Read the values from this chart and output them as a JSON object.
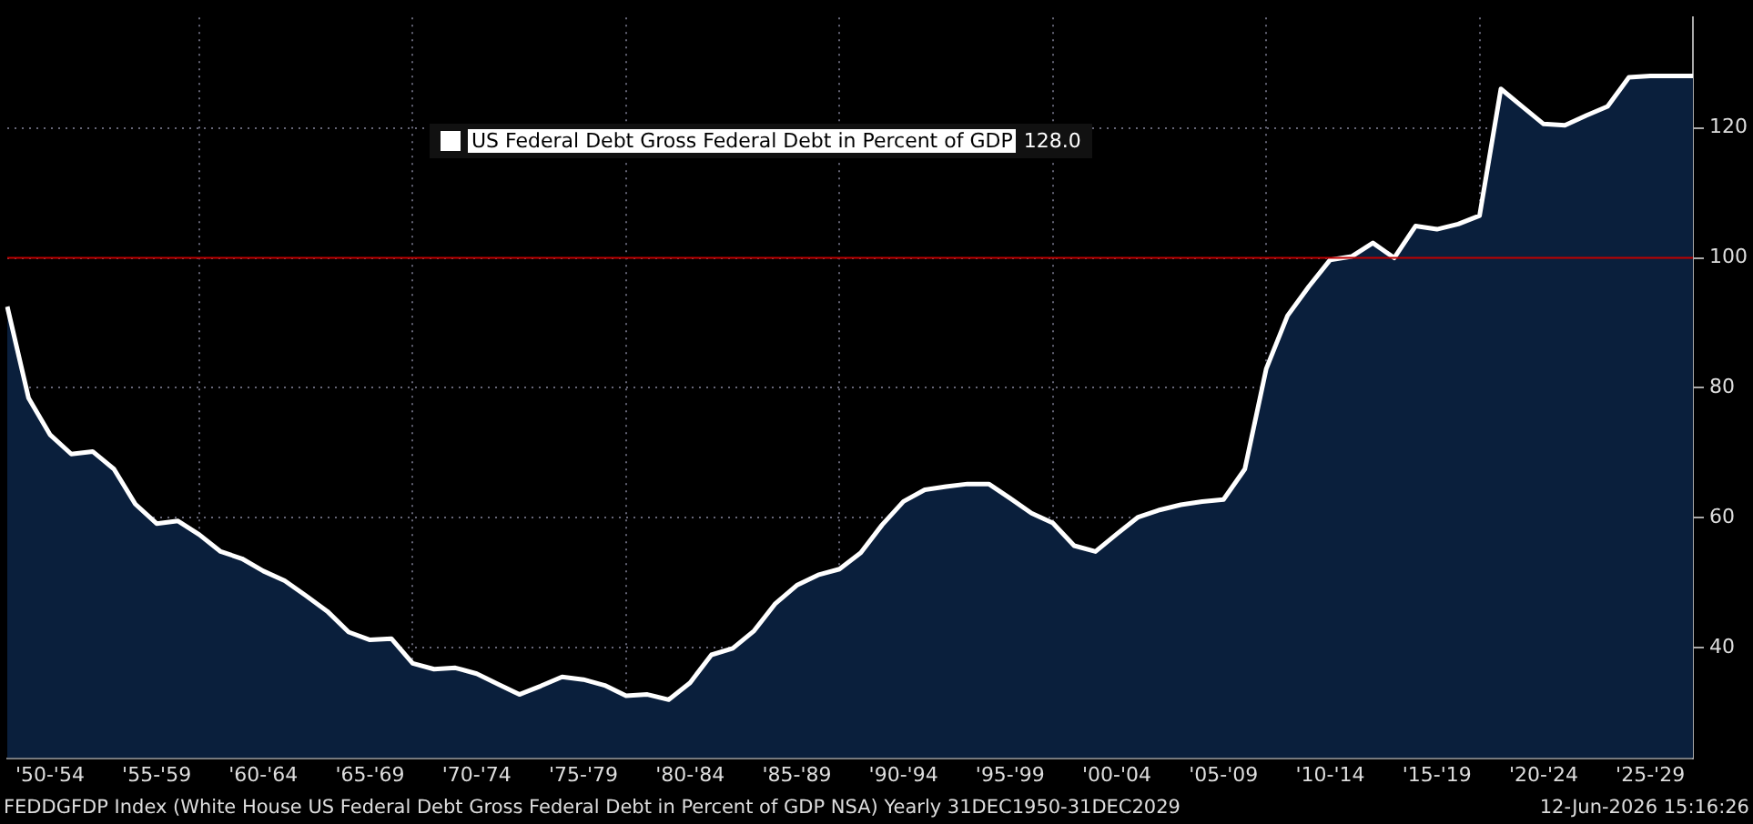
{
  "chart_data": {
    "type": "area",
    "categories": [
      null,
      null,
      "'50-'54",
      null,
      null,
      null,
      null,
      "'55-'59",
      null,
      null,
      null,
      null,
      "'60-'64",
      null,
      null,
      null,
      null,
      "'65-'69",
      null,
      null,
      null,
      null,
      "'70-'74",
      null,
      null,
      null,
      null,
      "'75-'79",
      null,
      null,
      null,
      null,
      "'80-'84",
      null,
      null,
      null,
      null,
      "'85-'89",
      null,
      null,
      null,
      null,
      "'90-'94",
      null,
      null,
      null,
      null,
      "'95-'99",
      null,
      null,
      null,
      null,
      "'00-'04",
      null,
      null,
      null,
      null,
      "'05-'09",
      null,
      null,
      null,
      null,
      "'10-'14",
      null,
      null,
      null,
      null,
      "'15-'19",
      null,
      null,
      null,
      null,
      "'20-'24",
      null,
      null,
      null,
      null,
      "'25-'29",
      null,
      null
    ],
    "series": [
      {
        "name": "US Federal Debt Gross Federal Debt in Percent of GDP",
        "color": "#ffffff",
        "values": [
          92.5,
          78.4,
          72.8,
          69.8,
          70.2,
          67.5,
          62.1,
          59.1,
          59.5,
          57.4,
          54.8,
          53.7,
          51.8,
          50.3,
          48.0,
          45.6,
          42.4,
          41.2,
          41.4,
          37.6,
          36.7,
          36.9,
          36.0,
          34.4,
          32.8,
          34.1,
          35.5,
          35.1,
          34.2,
          32.6,
          32.8,
          32.0,
          34.6,
          38.9,
          39.9,
          42.6,
          46.8,
          49.6,
          51.2,
          52.1,
          54.6,
          58.9,
          62.5,
          64.3,
          64.8,
          65.2,
          65.2,
          63.0,
          60.7,
          59.2,
          55.7,
          54.8,
          57.5,
          60.1,
          61.2,
          62.0,
          62.5,
          62.8,
          67.5,
          82.9,
          91.1,
          95.6,
          99.7,
          100.2,
          102.3,
          100.0,
          104.9,
          104.4,
          105.2,
          106.5,
          126.0,
          123.3,
          120.6,
          120.4,
          121.9,
          123.3,
          127.8,
          128.0,
          128.0,
          128.0
        ]
      }
    ],
    "ylim": [
      23,
      137
    ],
    "yticks": [
      40,
      60,
      80,
      100,
      120
    ],
    "grid": true,
    "legend": "top left",
    "ref_lines": [
      {
        "axis": "y",
        "value": 100,
        "color": "#c00000"
      }
    ],
    "annotations": [
      "128.0",
      "FEDDGFDP Index (White House US Federal Debt Gross Federal Debt in Percent of GDP NSA) Yearly 31DEC1950-31DEC2029",
      "12-Jun-2026 15:16:26"
    ]
  }
}
